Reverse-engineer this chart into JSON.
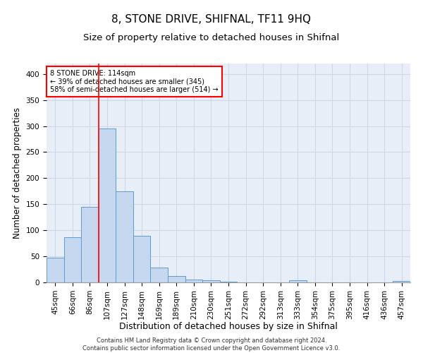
{
  "title1": "8, STONE DRIVE, SHIFNAL, TF11 9HQ",
  "title2": "Size of property relative to detached houses in Shifnal",
  "xlabel": "Distribution of detached houses by size in Shifnal",
  "ylabel": "Number of detached properties",
  "categories": [
    "45sqm",
    "66sqm",
    "86sqm",
    "107sqm",
    "127sqm",
    "148sqm",
    "169sqm",
    "189sqm",
    "210sqm",
    "230sqm",
    "251sqm",
    "272sqm",
    "292sqm",
    "313sqm",
    "333sqm",
    "354sqm",
    "375sqm",
    "395sqm",
    "416sqm",
    "436sqm",
    "457sqm"
  ],
  "values": [
    47,
    87,
    145,
    295,
    175,
    90,
    29,
    12,
    6,
    4,
    2,
    0,
    0,
    0,
    4,
    0,
    0,
    0,
    0,
    0,
    3
  ],
  "bar_color": "#c5d8f0",
  "bar_edge_color": "#5b9bd5",
  "vline_x_index": 3,
  "vline_color": "red",
  "annotation_text": "8 STONE DRIVE: 114sqm\n← 39% of detached houses are smaller (345)\n58% of semi-detached houses are larger (514) →",
  "annotation_box_color": "white",
  "annotation_box_edge_color": "red",
  "ylim": [
    0,
    420
  ],
  "yticks": [
    0,
    50,
    100,
    150,
    200,
    250,
    300,
    350,
    400
  ],
  "grid_color": "#d0d8e8",
  "background_color": "#e8eef8",
  "footer_text": "Contains HM Land Registry data © Crown copyright and database right 2024.\nContains public sector information licensed under the Open Government Licence v3.0.",
  "title1_fontsize": 11,
  "title2_fontsize": 9.5,
  "xlabel_fontsize": 9,
  "ylabel_fontsize": 8.5,
  "tick_fontsize": 7.5,
  "annotation_fontsize": 7,
  "footer_fontsize": 6
}
